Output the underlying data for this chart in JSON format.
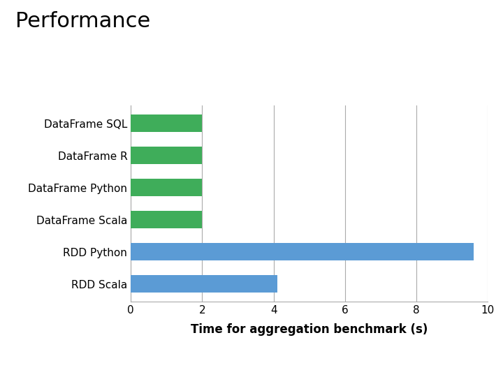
{
  "title": "Performance",
  "categories": [
    "DataFrame SQL",
    "DataFrame R",
    "DataFrame Python",
    "DataFrame Scala",
    "RDD Python",
    "RDD Scala"
  ],
  "values": [
    2.0,
    2.0,
    2.0,
    2.0,
    9.6,
    4.1
  ],
  "bar_colors": [
    "#3fad5a",
    "#3fad5a",
    "#3fad5a",
    "#3fad5a",
    "#5b9bd5",
    "#5b9bd5"
  ],
  "xlabel": "Time for aggregation benchmark (s)",
  "xlim": [
    0,
    10
  ],
  "xticks": [
    0,
    2,
    4,
    6,
    8,
    10
  ],
  "background_color": "#ffffff",
  "title_fontsize": 22,
  "xlabel_fontsize": 12,
  "tick_fontsize": 11,
  "ylabel_fontsize": 11,
  "grid_color": "#aaaaaa",
  "bar_height": 0.55
}
